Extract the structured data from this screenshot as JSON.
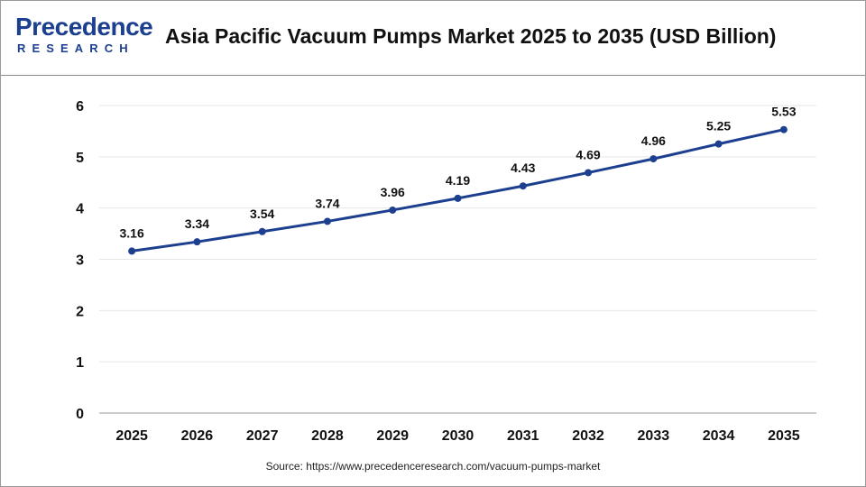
{
  "header": {
    "logo_top": "Precedence",
    "logo_bottom": "RESEARCH",
    "title": "Asia Pacific Vacuum Pumps Market 2025 to 2035  (USD Billion)"
  },
  "source": "Source: https://www.precedenceresearch.com/vacuum-pumps-market",
  "colors": {
    "line": "#1c3f8f",
    "brand": "#1c3f8f",
    "grid": "#e6e6e6"
  },
  "chart_data": {
    "type": "line",
    "title": "Asia Pacific Vacuum Pumps Market 2025 to 2035  (USD Billion)",
    "xlabel": "",
    "ylabel": "",
    "categories": [
      "2025",
      "2026",
      "2027",
      "2028",
      "2029",
      "2030",
      "2031",
      "2032",
      "2033",
      "2034",
      "2035"
    ],
    "values": [
      3.16,
      3.34,
      3.54,
      3.74,
      3.96,
      4.19,
      4.43,
      4.69,
      4.96,
      5.25,
      5.53
    ],
    "data_labels": [
      "3.16",
      "3.34",
      "3.54",
      "3.74",
      "3.96",
      "4.19",
      "4.43",
      "4.69",
      "4.96",
      "5.25",
      "5.53"
    ],
    "ylim": [
      0,
      6
    ],
    "yticks": [
      "0",
      "1",
      "2",
      "3",
      "4",
      "5",
      "6"
    ],
    "grid": true,
    "legend": "none"
  }
}
